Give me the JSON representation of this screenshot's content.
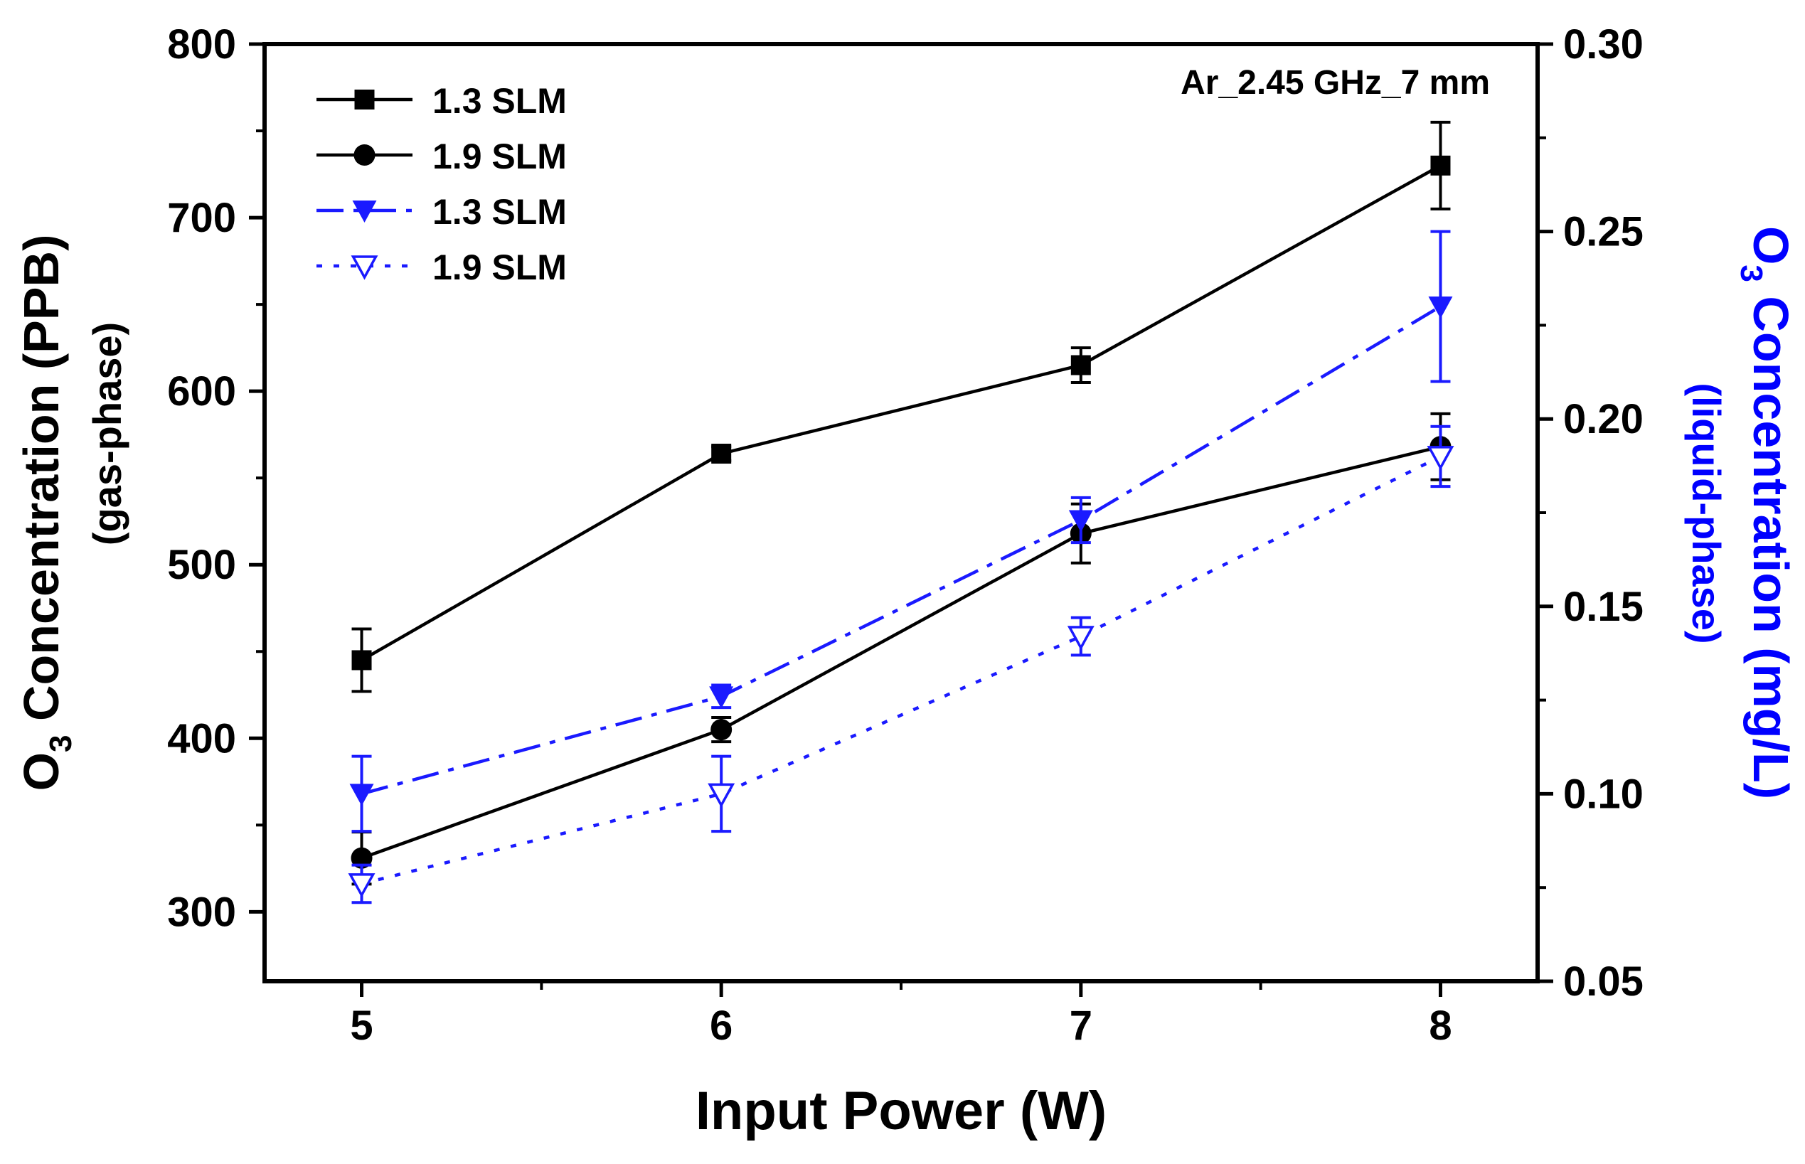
{
  "chart_data": {
    "type": "line",
    "annotation": "Ar_2.45 GHz_7 mm",
    "x": [
      5,
      6,
      7,
      8
    ],
    "xlabel": "Input Power (W)",
    "xlim": [
      4.73,
      8.27
    ],
    "x_ticks": [
      "5",
      "6",
      "7",
      "8"
    ],
    "y_left": {
      "label_main": "O",
      "label_sub": "3",
      "label_rest": " Concentration (PPB)",
      "label_line2": "(gas-phase)",
      "ylim": [
        260,
        800
      ],
      "ticks": [
        "300",
        "400",
        "500",
        "600",
        "700",
        "800"
      ],
      "color": "#000000"
    },
    "y_right": {
      "label_main": "O",
      "label_sub": "3",
      "label_rest": " Concentration (mg/L)",
      "label_line2": "(liquid-phase)",
      "ylim": [
        0.05,
        0.3
      ],
      "ticks": [
        "0.05",
        "0.10",
        "0.15",
        "0.20",
        "0.25",
        "0.30"
      ],
      "color": "#0000ff"
    },
    "series": [
      {
        "name": "1.3 SLM",
        "axis": "left",
        "color": "#000000",
        "marker": "square",
        "line": "solid",
        "values": [
          445,
          564,
          615,
          730
        ],
        "err": [
          18,
          4,
          10,
          25
        ]
      },
      {
        "name": "1.9 SLM",
        "axis": "left",
        "color": "#000000",
        "marker": "circle",
        "line": "solid",
        "values": [
          331,
          405,
          518,
          568
        ],
        "err": [
          15,
          7,
          17,
          19
        ]
      },
      {
        "name": "1.3 SLM",
        "axis": "right",
        "color": "#1a1aff",
        "marker": "triangle-down-filled",
        "line": "dashdot",
        "values": [
          0.1,
          0.126,
          0.173,
          0.23
        ],
        "err": [
          0.01,
          0.003,
          0.006,
          0.02
        ]
      },
      {
        "name": "1.9 SLM",
        "axis": "right",
        "color": "#1a1aff",
        "marker": "triangle-down-open",
        "line": "dotted",
        "values": [
          0.076,
          0.1,
          0.142,
          0.19
        ],
        "err": [
          0.005,
          0.01,
          0.005,
          0.008
        ]
      }
    ]
  }
}
